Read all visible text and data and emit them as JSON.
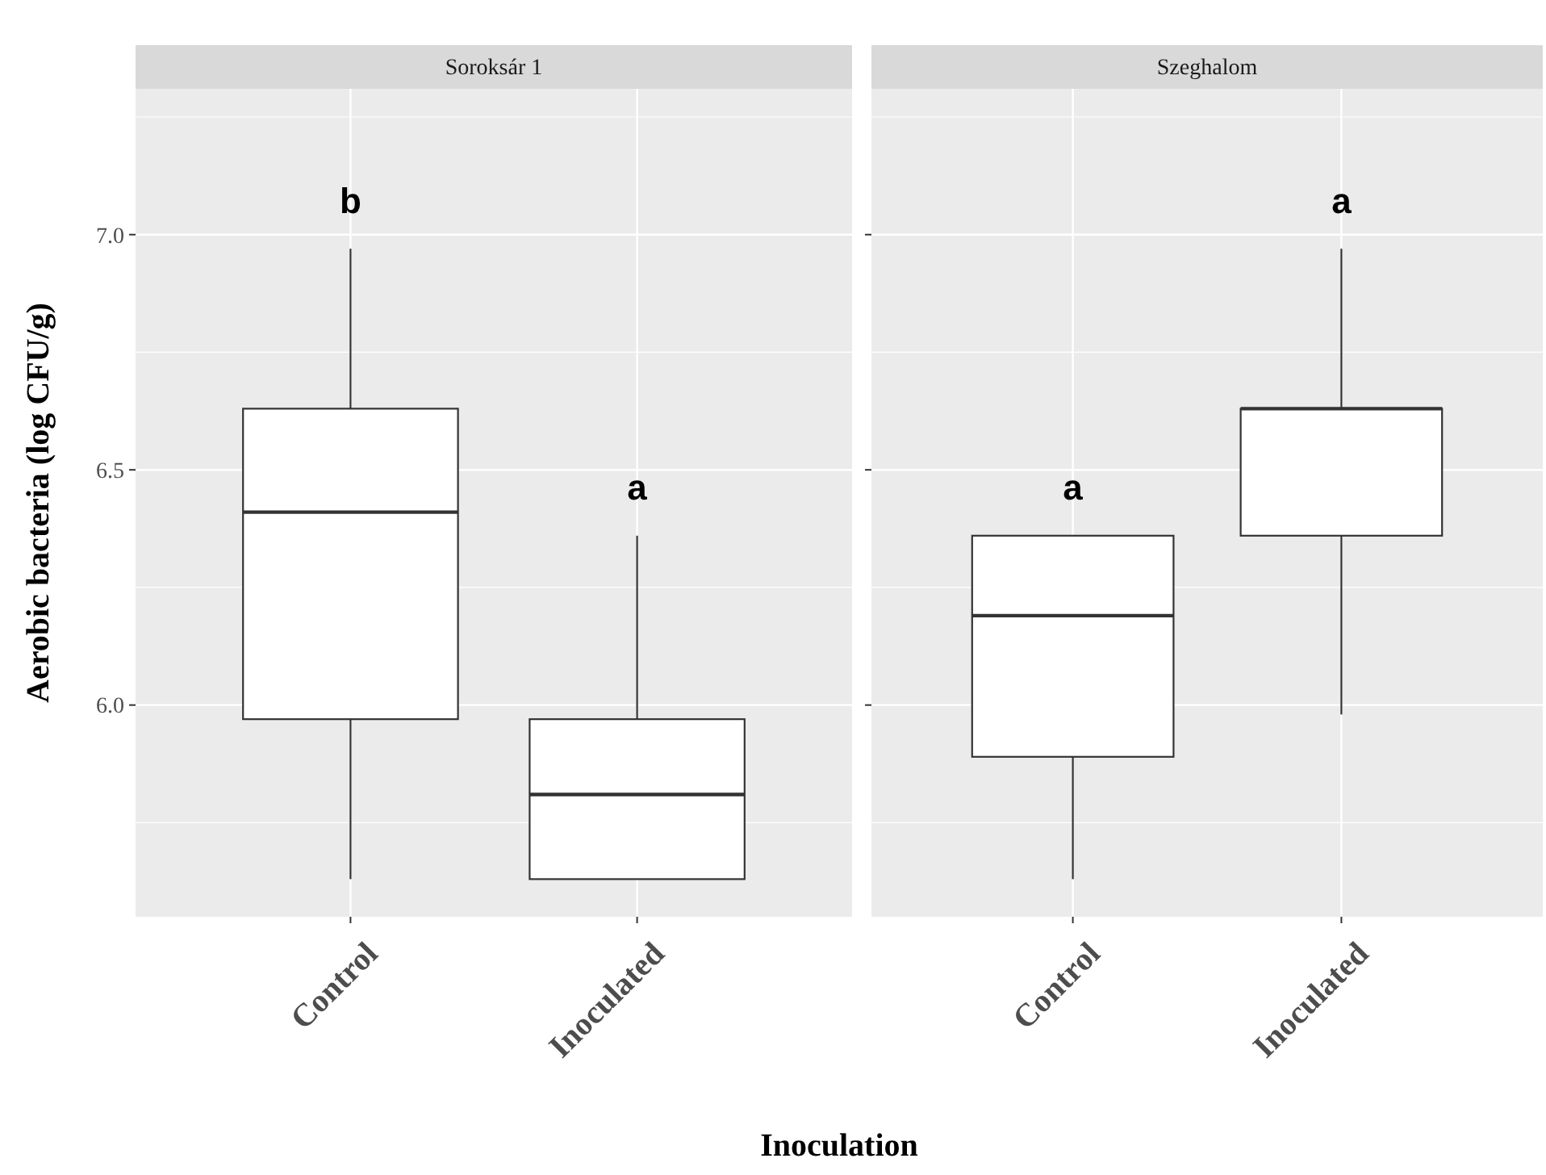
{
  "chart_data": [
    {
      "type": "box",
      "title": "Soroksár 1",
      "xlabel": "Inoculation",
      "ylabel": "Aerobic bacteria (log CFU/g)",
      "categories": [
        "Control",
        "Inoculated"
      ],
      "boxes": [
        {
          "low": 5.63,
          "q1": 5.97,
          "median": 6.41,
          "q3": 6.63,
          "high": 6.97
        },
        {
          "low": 5.63,
          "q1": 5.63,
          "median": 5.81,
          "q3": 5.97,
          "high": 6.36
        }
      ],
      "ylim": [
        5.55,
        7.31
      ],
      "yticks": [
        {
          "value": 6.0,
          "label": "6.0"
        },
        {
          "value": 6.5,
          "label": "6.5"
        },
        {
          "value": 7.0,
          "label": "7.0"
        }
      ],
      "grid": true,
      "annotations": [
        "b",
        "a"
      ]
    },
    {
      "type": "box",
      "title": "Szeghalom",
      "categories": [
        "Control",
        "Inoculated"
      ],
      "boxes": [
        {
          "low": 5.63,
          "q1": 5.89,
          "median": 6.19,
          "q3": 6.36,
          "high": 6.36
        },
        {
          "low": 5.98,
          "q1": 6.36,
          "median": 6.63,
          "q3": 6.63,
          "high": 6.97
        }
      ],
      "ylim": [
        5.55,
        7.31
      ],
      "yticks": [
        6,
        6.5,
        7
      ],
      "grid": true,
      "tick_labels": "x",
      "annotations": [
        "a",
        "a"
      ]
    }
  ]
}
